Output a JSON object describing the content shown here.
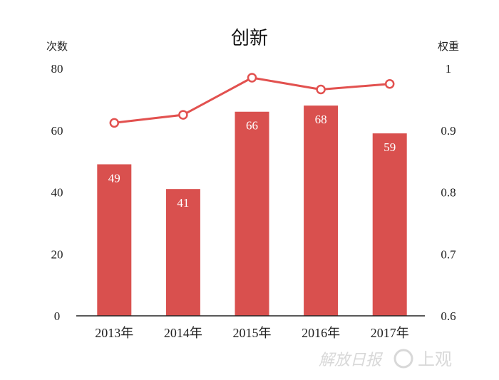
{
  "chart_data": {
    "type": "bar",
    "title": "创新",
    "categories": [
      "2013年",
      "2014年",
      "2015年",
      "2016年",
      "2017年"
    ],
    "series": [
      {
        "type": "bar",
        "axis": "left",
        "values": [
          49,
          41,
          66,
          68,
          59
        ],
        "color": "#d9504e"
      },
      {
        "type": "line",
        "axis": "right",
        "values": [
          0.912,
          0.925,
          0.985,
          0.966,
          0.975
        ],
        "color": "#e2514f"
      }
    ],
    "left_axis": {
      "label": "次数",
      "ylim": [
        0,
        80
      ],
      "ticks": [
        "0",
        "20",
        "40",
        "60",
        "80"
      ]
    },
    "right_axis": {
      "label": "权重",
      "ylim": [
        0.6,
        1
      ],
      "ticks": [
        "0.6",
        "0.7",
        "0.8",
        "0.9",
        "1"
      ]
    },
    "bar_data_labels": [
      "49",
      "41",
      "66",
      "68",
      "59"
    ],
    "grid": false,
    "legend": "none"
  },
  "watermark": {
    "left_text": "解放日报",
    "right_text": "上观"
  }
}
